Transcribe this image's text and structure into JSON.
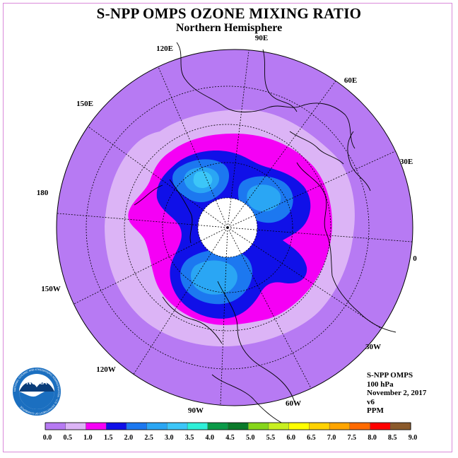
{
  "header": {
    "title": "S-NPP OMPS OZONE MIXING RATIO",
    "subtitle": "Northern Hemisphere"
  },
  "map": {
    "projection": "north-polar-stereographic",
    "longitude_labels": [
      "120E",
      "90E",
      "60E",
      "30E",
      "0",
      "30W",
      "60W",
      "90W",
      "120W",
      "150W",
      "180",
      "150E"
    ],
    "ozone_field": {
      "units": "PPM",
      "outer_region_value_range": [
        0.0,
        0.5
      ],
      "polar_gap": "no data near pole"
    },
    "colors": {
      "outer": "#b77af3",
      "band_05": "#dcb4f6",
      "band_10": "#f500f5",
      "band_15": "#1010e8",
      "band_20": "#1c78f0",
      "band_25": "#2aa6f4",
      "band_30": "#3cc6f8"
    }
  },
  "info": {
    "instrument": "S-NPP OMPS",
    "level": "100 hPa",
    "date": "November 2, 2017",
    "version": "v6",
    "units": "PPM"
  },
  "colorbar": {
    "labels": [
      "0.0",
      "0.5",
      "1.0",
      "1.5",
      "2.0",
      "2.5",
      "3.0",
      "3.5",
      "4.0",
      "4.5",
      "5.0",
      "5.5",
      "6.0",
      "6.5",
      "7.0",
      "7.5",
      "8.0",
      "8.5",
      "9.0"
    ],
    "colors": [
      "#b77af3",
      "#dcb4f6",
      "#f500f5",
      "#1010e8",
      "#1c78f0",
      "#2aa6f4",
      "#3cc6f8",
      "#2ef0d8",
      "#0a9a48",
      "#0a7a2a",
      "#86d61a",
      "#c8f020",
      "#ffff00",
      "#ffd200",
      "#ffa500",
      "#ff6a00",
      "#ff0000",
      "#8b5a2b"
    ]
  },
  "logo": {
    "text": "NOAA",
    "ring_text": "NATIONAL OCEANIC AND ATMOSPHERIC ADMINISTRATION · U.S. DEPARTMENT OF COMMERCE"
  }
}
